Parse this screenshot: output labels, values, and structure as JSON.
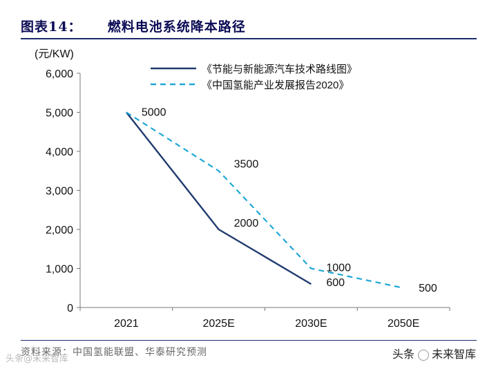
{
  "figure": {
    "label": "图表14：",
    "title": "燃料电池系统降本路径",
    "source": "资料来源：中国氢能联盟、华泰研究预测",
    "watermark_left": "头条@未来智库",
    "watermark_right_prefix": "头条",
    "watermark_right": "未来智库"
  },
  "chart_data": {
    "type": "line",
    "ylabel": "(元/KW)",
    "categories": [
      "2021",
      "2025E",
      "2030E",
      "2050E"
    ],
    "ylim": [
      0,
      6000
    ],
    "yticks": [
      0,
      1000,
      2000,
      3000,
      4000,
      5000,
      6000
    ],
    "ytick_labels": [
      "0",
      "1,000",
      "2,000",
      "3,000",
      "4,000",
      "5,000",
      "6,000"
    ],
    "series": [
      {
        "name": "《节能与新能源汽车技术路线图》",
        "style": "solid",
        "color": "#1f3a6e",
        "values": [
          5000,
          2000,
          600,
          null
        ],
        "labels": [
          "5000",
          "2000",
          "600",
          ""
        ]
      },
      {
        "name": "《中国氢能产业发展报告2020》",
        "style": "dashed",
        "color": "#1fa7d6",
        "values": [
          5000,
          3500,
          1000,
          500
        ],
        "labels": [
          "5000",
          "3500",
          "1000",
          "500"
        ]
      }
    ],
    "legend_position": "top"
  }
}
